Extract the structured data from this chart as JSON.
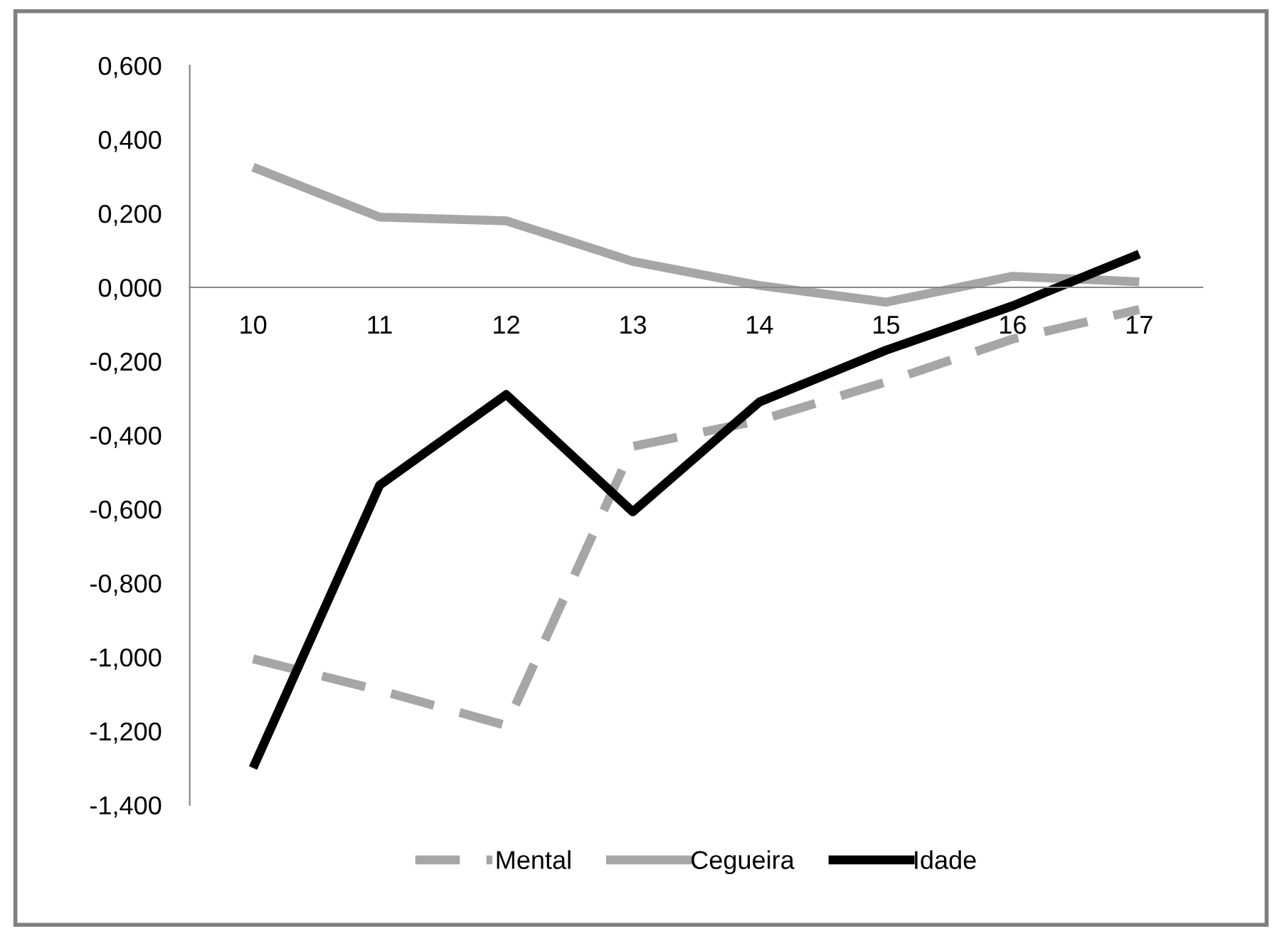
{
  "chart_data": {
    "type": "line",
    "categories": [
      "10",
      "11",
      "12",
      "13",
      "14",
      "15",
      "16",
      "17"
    ],
    "series": [
      {
        "name": "Mental",
        "color": "#a6a6a6",
        "line_style": "dashed",
        "values": [
          -1.005,
          -1.09,
          -1.185,
          -0.43,
          -0.36,
          -0.256,
          -0.14,
          -0.06
        ]
      },
      {
        "name": "Cegueira",
        "color": "#a6a6a6",
        "line_style": "solid",
        "values": [
          0.325,
          0.19,
          0.18,
          0.07,
          0.005,
          -0.04,
          0.03,
          0.015
        ]
      },
      {
        "name": "Idade",
        "color": "#000000",
        "line_style": "solid",
        "values": [
          -1.3,
          -0.535,
          -0.29,
          -0.607,
          -0.31,
          -0.17,
          -0.05,
          0.09
        ]
      }
    ],
    "ylim": [
      -1.4,
      0.6
    ],
    "yticks": [
      {
        "value": 0.6,
        "label": "0,600"
      },
      {
        "value": 0.4,
        "label": "0,400"
      },
      {
        "value": 0.2,
        "label": "0,200"
      },
      {
        "value": 0,
        "label": "0,000"
      },
      {
        "value": -0.2,
        "label": "-0,200"
      },
      {
        "value": -0.4,
        "label": "-0,400"
      },
      {
        "value": -0.6,
        "label": "-0,600"
      },
      {
        "value": -0.8,
        "label": "-0,800"
      },
      {
        "value": -1.0,
        "label": "-1,000"
      },
      {
        "value": -1.2,
        "label": "-1,200"
      },
      {
        "value": -1.4,
        "label": "-1,400"
      }
    ],
    "grid": false,
    "legend": "bottom",
    "marker": "none"
  }
}
